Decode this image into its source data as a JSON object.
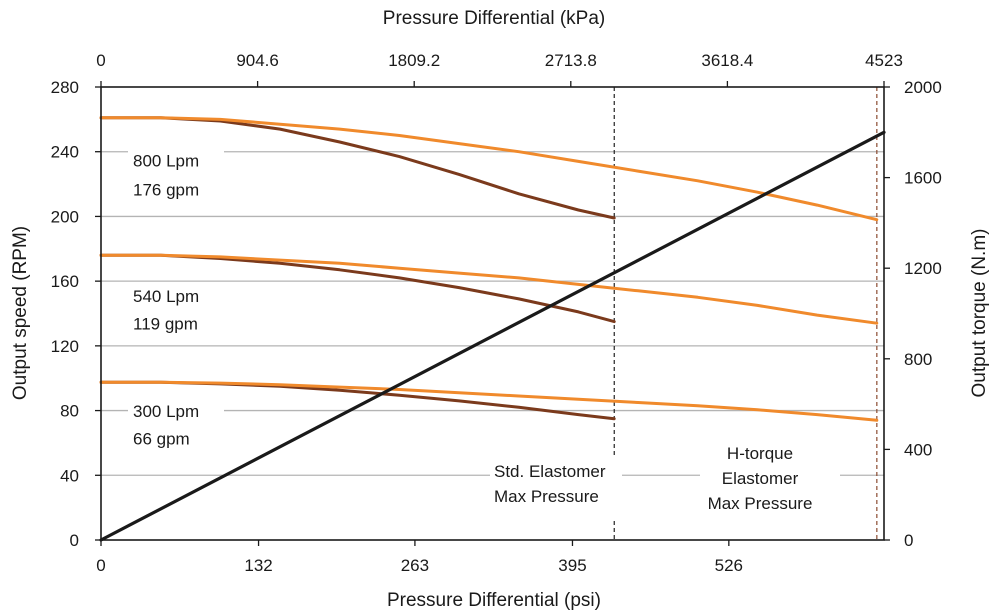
{
  "chart_data": {
    "type": "line",
    "title": "",
    "x_bottom": {
      "label": "Pressure Differential (psi)",
      "ticks": [
        0,
        132,
        263,
        395,
        526
      ],
      "range": [
        0,
        656
      ]
    },
    "x_top": {
      "label": "Pressure Differential (kPa)",
      "ticks": [
        "0",
        "904.6",
        "1809.2",
        "2713.8",
        "3618.4",
        "4523"
      ],
      "tick_psi": [
        0,
        131.2,
        262.4,
        393.6,
        524.8,
        656
      ]
    },
    "y_left": {
      "label": "Output speed (RPM)",
      "ticks": [
        0,
        40,
        80,
        120,
        160,
        200,
        240,
        280
      ],
      "range": [
        0,
        280
      ]
    },
    "y_right": {
      "label": "Output torque (N.m)",
      "ticks": [
        0,
        400,
        800,
        1200,
        1600,
        2000
      ],
      "range": [
        0,
        2000
      ]
    },
    "grid": "horizontal",
    "series": [
      {
        "axis": "left",
        "color": "#7b3a1c",
        "x": [
          0,
          50,
          100,
          150,
          200,
          250,
          300,
          350,
          400,
          430
        ],
        "values": [
          261,
          261,
          259,
          254,
          246,
          237,
          226,
          214,
          204,
          199
        ]
      },
      {
        "axis": "left",
        "color": "#f08a2c",
        "x": [
          0,
          50,
          100,
          150,
          200,
          250,
          300,
          350,
          400,
          450,
          500,
          550,
          600,
          650
        ],
        "values": [
          261,
          261,
          260,
          257,
          254,
          250,
          245,
          240,
          234,
          228,
          222,
          215,
          207,
          198
        ]
      },
      {
        "axis": "left",
        "color": "#7b3a1c",
        "x": [
          0,
          50,
          100,
          150,
          200,
          250,
          300,
          350,
          400,
          430
        ],
        "values": [
          176,
          176,
          174,
          171,
          167,
          162,
          156,
          149,
          141,
          135
        ]
      },
      {
        "axis": "left",
        "color": "#f08a2c",
        "x": [
          0,
          50,
          100,
          150,
          200,
          250,
          300,
          350,
          400,
          450,
          500,
          550,
          600,
          650
        ],
        "values": [
          176,
          176,
          175,
          173,
          171,
          168,
          165,
          162,
          158,
          154,
          150,
          145,
          139,
          134
        ]
      },
      {
        "axis": "left",
        "color": "#7b3a1c",
        "x": [
          0,
          50,
          100,
          150,
          200,
          250,
          300,
          350,
          400,
          430
        ],
        "values": [
          97.5,
          97.5,
          96.5,
          95,
          92.5,
          89.5,
          86,
          82,
          77.5,
          75
        ]
      },
      {
        "axis": "left",
        "color": "#f08a2c",
        "x": [
          0,
          50,
          100,
          150,
          200,
          250,
          300,
          350,
          400,
          450,
          500,
          550,
          600,
          650
        ],
        "values": [
          97.5,
          97.5,
          97,
          96,
          94.5,
          93,
          91,
          89,
          87,
          85,
          83,
          80.5,
          77.5,
          74
        ]
      },
      {
        "axis": "right",
        "color": "#1a1a1a",
        "x": [
          0,
          656
        ],
        "values": [
          0,
          1800
        ]
      }
    ],
    "flow_labels": [
      {
        "lpm": "800 Lpm",
        "gpm": "176 gpm",
        "y_rpm": [
          231,
          213
        ]
      },
      {
        "lpm": "540 Lpm",
        "gpm": "119 gpm",
        "y_rpm": [
          147,
          130
        ]
      },
      {
        "lpm": "300 Lpm",
        "gpm": "66 gpm",
        "y_rpm": [
          76,
          59
        ]
      }
    ],
    "limits": [
      {
        "x": 430,
        "color": "#222222",
        "lines": [
          "Std. Elastomer",
          "Max Pressure"
        ]
      },
      {
        "x": 650,
        "color": "#8b4a30",
        "lines": [
          "H-torque",
          "Elastomer",
          "Max Pressure"
        ]
      }
    ]
  }
}
